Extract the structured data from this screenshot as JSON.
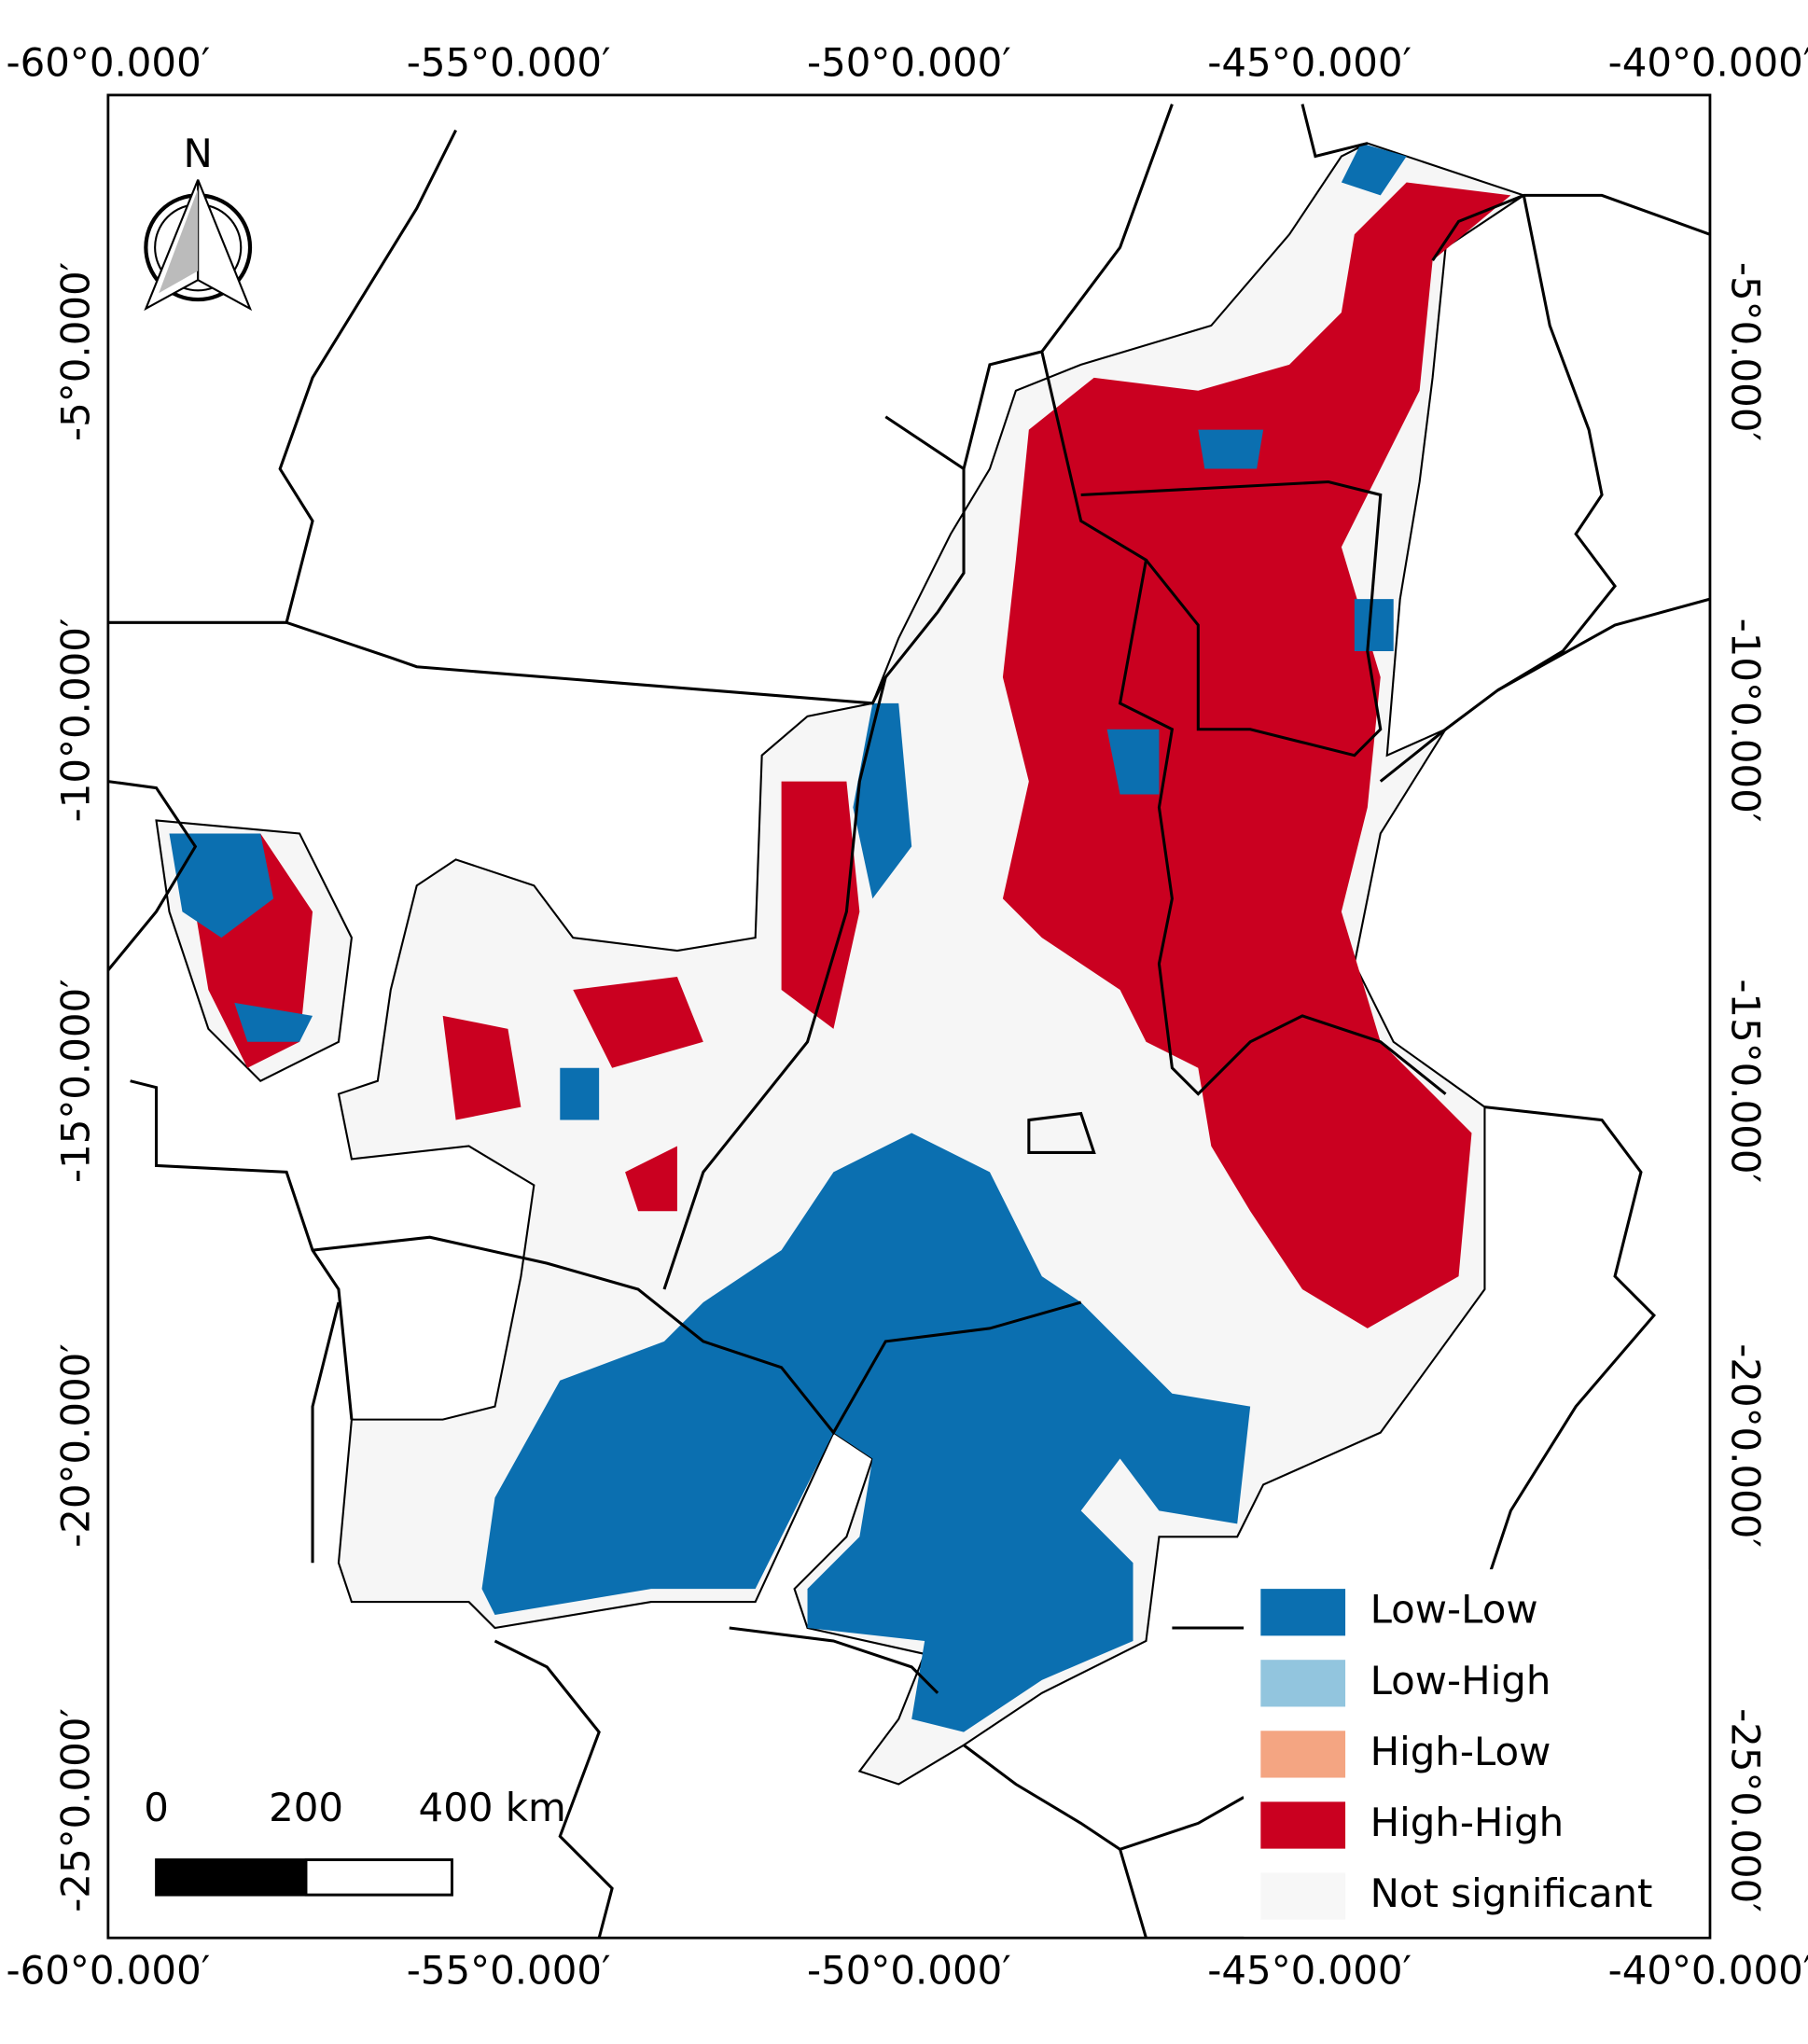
{
  "axes": {
    "top": [
      "-60°0.000′",
      "-55°0.000′",
      "-50°0.000′",
      "-45°0.000′",
      "-40°0.000′"
    ],
    "bottom": [
      "-60°0.000′",
      "-55°0.000′",
      "-50°0.000′",
      "-45°0.000′",
      "-40°0.000′"
    ],
    "left": [
      "-5°0.000′",
      "-10°0.000′",
      "-15°0.000′",
      "-20°0.000′",
      "-25°0.000′"
    ],
    "right": [
      "-5°0.000′",
      "-10°0.000′",
      "-15°0.000′",
      "-20°0.000′",
      "-25°0.000′"
    ]
  },
  "north": "N",
  "scale_bar": [
    "0",
    "200",
    "400 km"
  ],
  "legend": [
    {
      "label": "Low-Low",
      "color": "#0b6fb0"
    },
    {
      "label": "Low-High",
      "color": "#92c5de"
    },
    {
      "label": "High-Low",
      "color": "#f4a582"
    },
    {
      "label": "High-High",
      "color": "#ca0020"
    },
    {
      "label": "Not significant",
      "color": "#f7f7f7"
    }
  ]
}
